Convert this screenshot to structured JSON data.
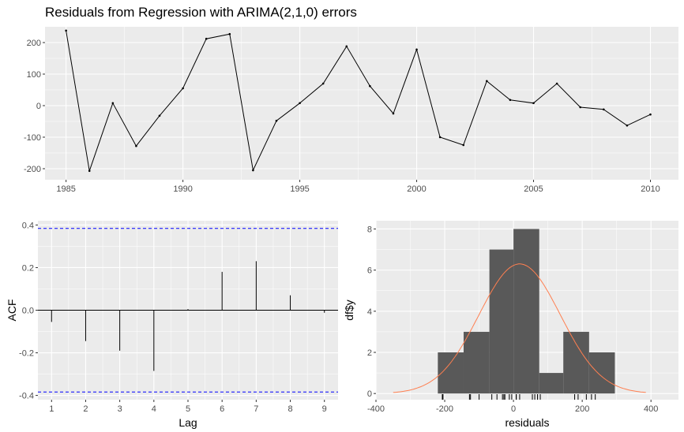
{
  "title": "Residuals from Regression with ARIMA(2,1,0) errors",
  "colors": {
    "panel_bg": "#EBEBEB",
    "grid_major": "#FFFFFF",
    "line": "#000000",
    "bound": "#0000FF",
    "hist_fill": "#595959",
    "density": "#FF7F50",
    "tick_text": "#4D4D4D"
  },
  "chart_data": [
    {
      "type": "line",
      "title": "Residuals from Regression with ARIMA(2,1,0) errors",
      "xlabel": "",
      "ylabel": "",
      "xlim": [
        1984.1,
        2011.2
      ],
      "ylim": [
        -235,
        250
      ],
      "xticks": [
        1985,
        1990,
        1995,
        2000,
        2005,
        2010
      ],
      "yticks": [
        -200,
        -100,
        0,
        100,
        200
      ],
      "x": [
        1985,
        1986,
        1987,
        1988,
        1989,
        1990,
        1991,
        1992,
        1993,
        1994,
        1995,
        1996,
        1997,
        1998,
        1999,
        2000,
        2001,
        2002,
        2003,
        2004,
        2005,
        2006,
        2007,
        2008,
        2009,
        2010
      ],
      "y": [
        238,
        -207,
        8,
        -128,
        -32,
        55,
        212,
        227,
        -205,
        -48,
        8,
        70,
        188,
        62,
        -25,
        178,
        -100,
        -125,
        78,
        18,
        8,
        70,
        -5,
        -12,
        -63,
        -28
      ]
    },
    {
      "type": "bar",
      "xlabel": "Lag",
      "ylabel": "ACF",
      "xlim": [
        0.6,
        9.4
      ],
      "ylim": [
        -0.42,
        0.42
      ],
      "xticks": [
        1,
        2,
        3,
        4,
        5,
        6,
        7,
        8,
        9
      ],
      "yticks": [
        -0.4,
        -0.2,
        0.0,
        0.2,
        0.4
      ],
      "lags": [
        1,
        2,
        3,
        4,
        5,
        6,
        7,
        8,
        9
      ],
      "values": [
        -0.055,
        -0.145,
        -0.19,
        -0.285,
        0.005,
        0.18,
        0.23,
        0.07,
        -0.012
      ],
      "bounds": [
        0.384,
        -0.384
      ]
    },
    {
      "type": "bar",
      "xlabel": "residuals",
      "ylabel": "df$y",
      "xlim": [
        -400,
        480
      ],
      "ylim": [
        -0.3,
        8.4
      ],
      "xticks": [
        -400,
        -200,
        0,
        200,
        400
      ],
      "yticks": [
        0,
        2,
        4,
        6,
        8
      ],
      "bins": [
        {
          "from": -220,
          "to": -145,
          "count": 2
        },
        {
          "from": -145,
          "to": -70,
          "count": 3
        },
        {
          "from": -70,
          "to": 0,
          "count": 7
        },
        {
          "from": 0,
          "to": 75,
          "count": 8
        },
        {
          "from": 75,
          "to": 145,
          "count": 1
        },
        {
          "from": 145,
          "to": 220,
          "count": 3
        },
        {
          "from": 220,
          "to": 295,
          "count": 2
        }
      ],
      "density": {
        "mean": 18,
        "sd": 118.5,
        "peak": 6.3,
        "from": -350,
        "to": 385
      },
      "rug": [
        -207,
        -205,
        -128,
        -125,
        -100,
        -63,
        -48,
        -32,
        -28,
        -25,
        -12,
        -5,
        8,
        8,
        8,
        18,
        55,
        62,
        70,
        70,
        78,
        178,
        188,
        212,
        227,
        238
      ]
    }
  ]
}
